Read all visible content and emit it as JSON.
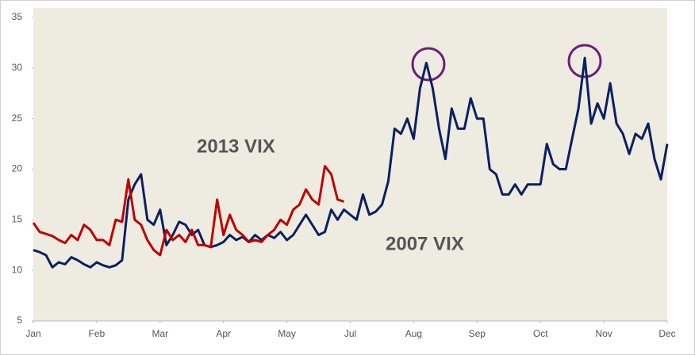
{
  "chart_data": {
    "type": "line",
    "xlim": [
      0,
      10
    ],
    "xticks": [
      {
        "value": 0,
        "label": "Jan"
      },
      {
        "value": 1,
        "label": "Feb"
      },
      {
        "value": 2,
        "label": "Mar"
      },
      {
        "value": 3,
        "label": "Apr"
      },
      {
        "value": 4,
        "label": "May"
      },
      {
        "value": 5,
        "label": "Jul"
      },
      {
        "value": 6,
        "label": "Aug"
      },
      {
        "value": 7,
        "label": "Sep"
      },
      {
        "value": 8,
        "label": "Oct"
      },
      {
        "value": 9,
        "label": "Nov"
      },
      {
        "value": 10,
        "label": "Dec"
      }
    ],
    "ylim": [
      5,
      35
    ],
    "yticks": [
      5,
      10,
      15,
      20,
      25,
      30,
      35
    ],
    "annotations": [
      {
        "text": "2013 VIX",
        "color": "#c00000"
      },
      {
        "text": "2007 VIX",
        "color": "#0b2060"
      }
    ],
    "series": [
      {
        "color": "#0b2060",
        "x": [
          0,
          0.1,
          0.2,
          0.3,
          0.4,
          0.5,
          0.6,
          0.7,
          0.8,
          0.9,
          1,
          1.1,
          1.2,
          1.3,
          1.4,
          1.5,
          1.6,
          1.7,
          1.8,
          1.9,
          2,
          2.1,
          2.2,
          2.3,
          2.4,
          2.5,
          2.6,
          2.7,
          2.8,
          2.9,
          3,
          3.1,
          3.2,
          3.3,
          3.4,
          3.5,
          3.6,
          3.7,
          3.8,
          3.9,
          4,
          4.1,
          4.2,
          4.3,
          4.4,
          4.5,
          4.6,
          4.7,
          4.8,
          4.9,
          5,
          5.1,
          5.2,
          5.3,
          5.4,
          5.5,
          5.6,
          5.7,
          5.8,
          5.9,
          6,
          6.1,
          6.2,
          6.3,
          6.4,
          6.5,
          6.6,
          6.7,
          6.8,
          6.9,
          7,
          7.1,
          7.2,
          7.3,
          7.4,
          7.5,
          7.6,
          7.7,
          7.8,
          7.9,
          8,
          8.1,
          8.2,
          8.3,
          8.4,
          8.5,
          8.6,
          8.7,
          8.8,
          8.9,
          9,
          9.1,
          9.2,
          9.3,
          9.4,
          9.5,
          9.6,
          9.7,
          9.8,
          9.9,
          10
        ],
        "values": [
          12,
          11.8,
          11.5,
          10.3,
          10.8,
          10.6,
          11.3,
          11,
          10.6,
          10.3,
          10.8,
          10.5,
          10.3,
          10.5,
          11,
          17,
          18.5,
          19.5,
          15,
          14.5,
          16,
          12.5,
          13.5,
          14.8,
          14.5,
          13.5,
          14,
          12.5,
          12.3,
          12.5,
          12.8,
          13.5,
          13,
          13.3,
          12.8,
          13.5,
          13,
          13.5,
          13.2,
          13.8,
          13,
          13.5,
          14.5,
          15.5,
          14.5,
          13.5,
          13.8,
          16,
          15,
          16,
          15.5,
          15,
          17.5,
          15.5,
          15.8,
          16.5,
          18.8,
          24,
          23.5,
          25,
          23,
          28,
          30.5,
          28,
          24,
          21,
          26,
          24,
          24,
          27,
          25,
          25,
          20,
          19.5,
          17.5,
          17.5,
          18.5,
          17.5,
          18.5,
          18.5,
          18.5,
          22.5,
          20.5,
          20,
          20,
          23,
          26,
          31,
          24.5,
          26.5,
          25,
          28.5,
          24.5,
          23.5,
          21.5,
          23.5,
          23,
          24.5,
          21,
          19,
          22.5
        ]
      },
      {
        "color": "#c00000",
        "x": [
          0,
          0.1,
          0.2,
          0.3,
          0.4,
          0.5,
          0.6,
          0.7,
          0.8,
          0.9,
          1,
          1.1,
          1.2,
          1.3,
          1.4,
          1.5,
          1.6,
          1.7,
          1.8,
          1.9,
          2,
          2.1,
          2.2,
          2.3,
          2.4,
          2.5,
          2.6,
          2.7,
          2.8,
          2.9,
          3,
          3.1,
          3.2,
          3.3,
          3.4,
          3.5,
          3.6,
          3.7,
          3.8,
          3.9,
          4,
          4.1,
          4.2,
          4.3,
          4.4,
          4.5,
          4.6,
          4.7,
          4.8,
          4.9
        ],
        "values": [
          14.7,
          13.8,
          13.6,
          13.4,
          13,
          12.7,
          13.5,
          13,
          14.5,
          14,
          13,
          13,
          12.5,
          15,
          14.8,
          19,
          15,
          14.5,
          13,
          12,
          11.5,
          14,
          13,
          13.5,
          12.8,
          14,
          12.5,
          12.5,
          12.3,
          17,
          13.5,
          15.5,
          14,
          13.5,
          12.8,
          13,
          12.8,
          13.5,
          14,
          15,
          14.5,
          16,
          16.5,
          18,
          17,
          16.5,
          20.3,
          19.5,
          17,
          16.8
        ]
      }
    ]
  }
}
